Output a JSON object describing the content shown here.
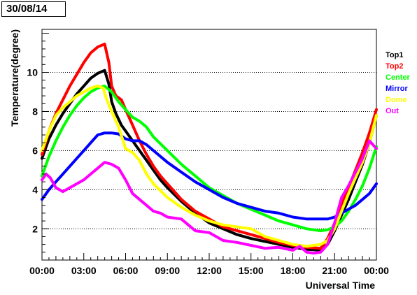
{
  "date_label": "30/08/14",
  "chart_data": {
    "type": "line",
    "title": "",
    "xlabel": "Universal Time",
    "ylabel": "Temperature(degree)",
    "xlim": [
      0,
      24
    ],
    "ylim": [
      0.4,
      12.2
    ],
    "x_ticks": [
      {
        "value": 0,
        "label": "00:00"
      },
      {
        "value": 3,
        "label": "03:00"
      },
      {
        "value": 6,
        "label": "06:00"
      },
      {
        "value": 9,
        "label": "09:00"
      },
      {
        "value": 12,
        "label": "12:00"
      },
      {
        "value": 15,
        "label": "15:00"
      },
      {
        "value": 18,
        "label": "18:00"
      },
      {
        "value": 21,
        "label": "21:00"
      },
      {
        "value": 24,
        "label": "00:00"
      }
    ],
    "y_ticks": [
      2,
      4,
      6,
      8,
      10
    ],
    "grid": "horizontal dotted",
    "legend_position": "right",
    "series": [
      {
        "name": "Top1",
        "color": "#000000",
        "points": [
          [
            0,
            5.6
          ],
          [
            0.5,
            6.6
          ],
          [
            1,
            7.3
          ],
          [
            1.5,
            7.9
          ],
          [
            2,
            8.4
          ],
          [
            2.5,
            8.9
          ],
          [
            3,
            9.3
          ],
          [
            3.5,
            9.7
          ],
          [
            4,
            9.95
          ],
          [
            4.5,
            10.1
          ],
          [
            4.8,
            9.4
          ],
          [
            5,
            8.5
          ],
          [
            5.3,
            7.9
          ],
          [
            5.7,
            7.3
          ],
          [
            6,
            7.0
          ],
          [
            6.5,
            6.5
          ],
          [
            7,
            6.0
          ],
          [
            7.5,
            5.5
          ],
          [
            8,
            5.0
          ],
          [
            8.5,
            4.5
          ],
          [
            9,
            4.1
          ],
          [
            10,
            3.4
          ],
          [
            11,
            2.8
          ],
          [
            12,
            2.3
          ],
          [
            13,
            2.0
          ],
          [
            14,
            1.7
          ],
          [
            15,
            1.5
          ],
          [
            16,
            1.35
          ],
          [
            17,
            1.2
          ],
          [
            18,
            1.05
          ],
          [
            19,
            0.95
          ],
          [
            20,
            0.9
          ],
          [
            20.5,
            1.2
          ],
          [
            21,
            1.9
          ],
          [
            21.5,
            2.7
          ],
          [
            22,
            3.5
          ],
          [
            22.5,
            4.4
          ],
          [
            23,
            5.3
          ],
          [
            23.5,
            6.4
          ],
          [
            24,
            7.8
          ]
        ]
      },
      {
        "name": "Top2",
        "color": "#ff0000",
        "points": [
          [
            0,
            5.8
          ],
          [
            0.5,
            7.0
          ],
          [
            1,
            7.9
          ],
          [
            1.5,
            8.6
          ],
          [
            2,
            9.3
          ],
          [
            2.5,
            9.9
          ],
          [
            3,
            10.5
          ],
          [
            3.5,
            11.0
          ],
          [
            4,
            11.3
          ],
          [
            4.5,
            11.45
          ],
          [
            4.8,
            10.5
          ],
          [
            5,
            9.3
          ],
          [
            5.3,
            8.8
          ],
          [
            5.7,
            8.6
          ],
          [
            6,
            8.1
          ],
          [
            6.5,
            7.3
          ],
          [
            7,
            6.5
          ],
          [
            7.5,
            5.8
          ],
          [
            8,
            5.2
          ],
          [
            8.5,
            4.7
          ],
          [
            9,
            4.3
          ],
          [
            10,
            3.5
          ],
          [
            11,
            2.9
          ],
          [
            12,
            2.5
          ],
          [
            13,
            2.1
          ],
          [
            14,
            1.9
          ],
          [
            15,
            1.7
          ],
          [
            16,
            1.5
          ],
          [
            17,
            1.3
          ],
          [
            18,
            1.15
          ],
          [
            19,
            1.05
          ],
          [
            20,
            1.0
          ],
          [
            20.5,
            1.5
          ],
          [
            21,
            2.3
          ],
          [
            21.5,
            3.2
          ],
          [
            22,
            4.1
          ],
          [
            22.5,
            5.0
          ],
          [
            23,
            5.9
          ],
          [
            23.5,
            6.9
          ],
          [
            24,
            8.1
          ]
        ]
      },
      {
        "name": "Center",
        "color": "#00ff00",
        "points": [
          [
            0,
            4.7
          ],
          [
            0.5,
            5.7
          ],
          [
            1,
            6.5
          ],
          [
            1.5,
            7.2
          ],
          [
            2,
            7.8
          ],
          [
            2.5,
            8.3
          ],
          [
            3,
            8.7
          ],
          [
            3.5,
            9.0
          ],
          [
            4,
            9.2
          ],
          [
            4.5,
            9.3
          ],
          [
            5,
            9.0
          ],
          [
            5.5,
            8.5
          ],
          [
            6,
            8.1
          ],
          [
            6.5,
            7.7
          ],
          [
            7,
            7.5
          ],
          [
            7.5,
            7.2
          ],
          [
            8,
            6.7
          ],
          [
            9,
            6.0
          ],
          [
            10,
            5.3
          ],
          [
            11,
            4.7
          ],
          [
            12,
            4.1
          ],
          [
            13,
            3.7
          ],
          [
            14,
            3.3
          ],
          [
            15,
            3.0
          ],
          [
            16,
            2.7
          ],
          [
            17,
            2.4
          ],
          [
            18,
            2.2
          ],
          [
            19,
            2.0
          ],
          [
            20,
            1.9
          ],
          [
            20.5,
            1.95
          ],
          [
            21,
            2.1
          ],
          [
            21.5,
            2.4
          ],
          [
            22,
            2.9
          ],
          [
            22.5,
            3.5
          ],
          [
            23,
            4.2
          ],
          [
            23.5,
            5.1
          ],
          [
            24,
            6.2
          ]
        ]
      },
      {
        "name": "Mirror",
        "color": "#0000ff",
        "points": [
          [
            0,
            3.5
          ],
          [
            0.5,
            4.0
          ],
          [
            1,
            4.4
          ],
          [
            1.5,
            4.8
          ],
          [
            2,
            5.2
          ],
          [
            2.5,
            5.6
          ],
          [
            3,
            6.0
          ],
          [
            3.5,
            6.4
          ],
          [
            4,
            6.8
          ],
          [
            4.5,
            6.9
          ],
          [
            5,
            6.9
          ],
          [
            5.5,
            6.85
          ],
          [
            6,
            6.6
          ],
          [
            6.5,
            6.5
          ],
          [
            7,
            6.5
          ],
          [
            7.5,
            6.3
          ],
          [
            8,
            6.0
          ],
          [
            9,
            5.4
          ],
          [
            10,
            4.9
          ],
          [
            11,
            4.4
          ],
          [
            12,
            4.0
          ],
          [
            13,
            3.6
          ],
          [
            14,
            3.3
          ],
          [
            15,
            3.1
          ],
          [
            16,
            2.9
          ],
          [
            17,
            2.8
          ],
          [
            18,
            2.6
          ],
          [
            19,
            2.5
          ],
          [
            20,
            2.5
          ],
          [
            20.5,
            2.5
          ],
          [
            21,
            2.6
          ],
          [
            21.5,
            2.8
          ],
          [
            22,
            3.0
          ],
          [
            22.5,
            3.2
          ],
          [
            23,
            3.5
          ],
          [
            23.5,
            3.8
          ],
          [
            24,
            4.3
          ]
        ]
      },
      {
        "name": "Dome",
        "color": "#ffff00",
        "points": [
          [
            0,
            6.0
          ],
          [
            0.5,
            7.0
          ],
          [
            1,
            7.8
          ],
          [
            1.5,
            8.2
          ],
          [
            2,
            8.5
          ],
          [
            2.5,
            8.8
          ],
          [
            3,
            9.0
          ],
          [
            3.5,
            9.2
          ],
          [
            4,
            9.3
          ],
          [
            4.4,
            9.2
          ],
          [
            4.6,
            8.7
          ],
          [
            5,
            8.0
          ],
          [
            5.5,
            7.2
          ],
          [
            6,
            6.1
          ],
          [
            6.5,
            5.9
          ],
          [
            7,
            5.5
          ],
          [
            7.5,
            4.8
          ],
          [
            8,
            4.3
          ],
          [
            9,
            3.6
          ],
          [
            10,
            3.1
          ],
          [
            11,
            2.7
          ],
          [
            12,
            2.4
          ],
          [
            13,
            2.2
          ],
          [
            14,
            2.1
          ],
          [
            15,
            2.0
          ],
          [
            16,
            1.6
          ],
          [
            17,
            1.4
          ],
          [
            18,
            1.2
          ],
          [
            19,
            1.1
          ],
          [
            20,
            1.2
          ],
          [
            20.5,
            1.4
          ],
          [
            21,
            2.0
          ],
          [
            21.5,
            2.9
          ],
          [
            22,
            3.8
          ],
          [
            22.5,
            4.6
          ],
          [
            23,
            5.4
          ],
          [
            23.5,
            6.4
          ],
          [
            24,
            7.8
          ]
        ]
      },
      {
        "name": "Out",
        "color": "#ff00ff",
        "points": [
          [
            0,
            4.5
          ],
          [
            0.3,
            4.8
          ],
          [
            0.6,
            4.6
          ],
          [
            1,
            4.1
          ],
          [
            1.5,
            3.9
          ],
          [
            2,
            4.1
          ],
          [
            2.5,
            4.3
          ],
          [
            3,
            4.5
          ],
          [
            3.5,
            4.8
          ],
          [
            4,
            5.1
          ],
          [
            4.5,
            5.4
          ],
          [
            5,
            5.3
          ],
          [
            5.5,
            5.1
          ],
          [
            6,
            4.5
          ],
          [
            6.5,
            3.8
          ],
          [
            7,
            3.5
          ],
          [
            7.5,
            3.2
          ],
          [
            8,
            2.9
          ],
          [
            8.5,
            2.8
          ],
          [
            9,
            2.6
          ],
          [
            10,
            2.5
          ],
          [
            10.5,
            2.2
          ],
          [
            11,
            1.9
          ],
          [
            12,
            1.8
          ],
          [
            13,
            1.4
          ],
          [
            14,
            1.3
          ],
          [
            15,
            1.15
          ],
          [
            16,
            1.0
          ],
          [
            17,
            1.05
          ],
          [
            18,
            0.9
          ],
          [
            18.5,
            1.1
          ],
          [
            19,
            0.8
          ],
          [
            19.5,
            0.75
          ],
          [
            20,
            0.8
          ],
          [
            20.5,
            1.2
          ],
          [
            21,
            2.3
          ],
          [
            21.5,
            3.6
          ],
          [
            22,
            4.2
          ],
          [
            22.5,
            4.9
          ],
          [
            23,
            5.6
          ],
          [
            23.5,
            6.5
          ],
          [
            24,
            6.1
          ]
        ]
      }
    ]
  }
}
